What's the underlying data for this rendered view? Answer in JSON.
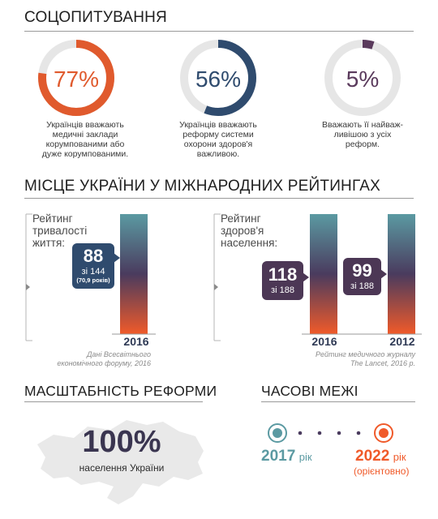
{
  "survey": {
    "title": "СОЦОПИТУВАННЯ",
    "items": [
      {
        "value": "77%",
        "percent": 77,
        "color": "#e05a2d",
        "caption": [
          "Українців вважають",
          "медичні заклади",
          "корумпованими або",
          "дуже корумпованими."
        ]
      },
      {
        "value": "56%",
        "percent": 56,
        "color": "#2f4b6e",
        "caption": [
          "Українців вважають",
          "реформу системи",
          "охорони здоров'я",
          "важливою."
        ]
      },
      {
        "value": "5%",
        "percent": 5,
        "color": "#5a3a5c",
        "caption": [
          "Вважають її найваж-",
          "ливішою з усіх",
          "реформ."
        ]
      }
    ]
  },
  "ratings": {
    "title": "МІСЦЕ УКРАЇНИ У МІЖНАРОДНИХ РЕЙТИНГАХ",
    "life": {
      "label": [
        "Рейтинг",
        "тривалості",
        "життя:"
      ],
      "rank": "88",
      "of": "зі 144",
      "extra": "(70,9 років)",
      "year": "2016",
      "note": [
        "Дані Всесвітнього",
        "економічного форуму, 2016"
      ]
    },
    "health": {
      "label": [
        "Рейтинг",
        "здоров'я",
        "населення:"
      ],
      "a_rank": "118",
      "a_of": "зі 188",
      "a_year": "2016",
      "b_rank": "99",
      "b_of": "зі 188",
      "b_year": "2012",
      "note": [
        "Рейтинг медичного журналу",
        "The Lancet, 2016 р."
      ]
    }
  },
  "scale": {
    "title": "МАСШТАБНІСТЬ РЕФОРМИ",
    "value": "100%",
    "caption": "населення України"
  },
  "time": {
    "title": "ЧАСОВІ МЕЖІ",
    "start_year": "2017",
    "start_unit": "рік",
    "end_year": "2022",
    "end_unit": "рік",
    "end_note": "(орієнтовно)"
  },
  "colors": {
    "orange": "#e05a2d",
    "navy": "#2f4b6e",
    "purple": "#5a3a5c",
    "teal": "#5b9aa2"
  }
}
